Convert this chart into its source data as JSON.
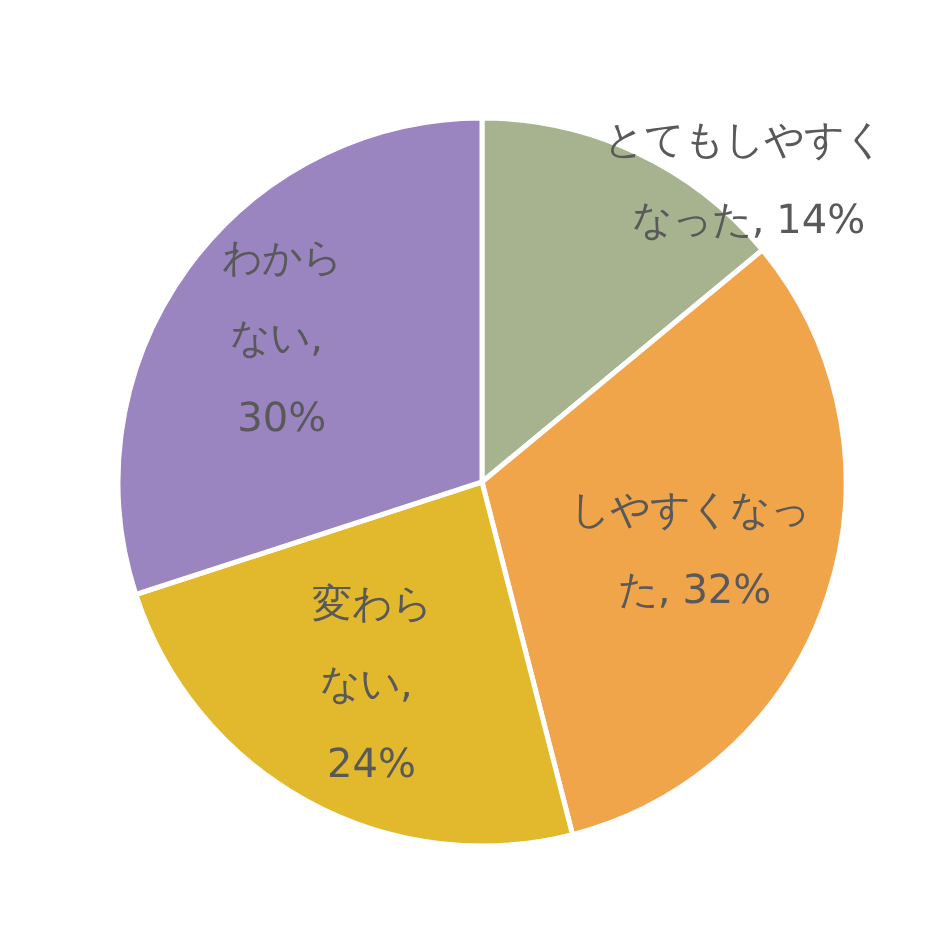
{
  "chart_data": {
    "type": "pie",
    "categories": [
      "とてもしやすくなった",
      "しやすくなった",
      "変わらない",
      "わからない"
    ],
    "value_labels": [
      ", 14%",
      ", 32%",
      ", 24%",
      ", 30%"
    ],
    "values": [
      14,
      32,
      24,
      30
    ],
    "colors": [
      "#a7b38f",
      "#f1a54b",
      "#e2b92d",
      "#9b85c0"
    ],
    "data_labels": true,
    "legend": false
  }
}
